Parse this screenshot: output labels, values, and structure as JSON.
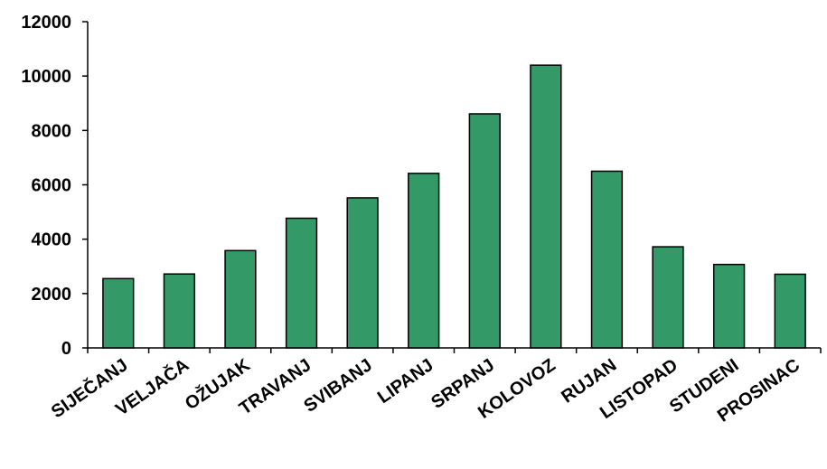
{
  "chart_data": {
    "type": "bar",
    "title": "",
    "xlabel": "",
    "ylabel": "",
    "categories": [
      "SIJEČANJ",
      "VELJAČA",
      "OŽUJAK",
      "TRAVANJ",
      "SVIBANJ",
      "LIPANJ",
      "SRPANJ",
      "KOLOVOZ",
      "RUJAN",
      "LISTOPAD",
      "STUDENI",
      "PROSINAC"
    ],
    "values": [
      2550,
      2720,
      3580,
      4770,
      5520,
      6420,
      8610,
      10400,
      6500,
      3720,
      3070,
      2710
    ],
    "ylim": [
      0,
      12000
    ],
    "yticks": [
      "0",
      "2000",
      "4000",
      "6000",
      "8000",
      "10000",
      "12000"
    ],
    "grid": false,
    "legend": "none",
    "colors": {
      "bar_fill": "#339966",
      "bar_stroke": "#000000",
      "axis": "#000000",
      "text": "#000000"
    }
  }
}
